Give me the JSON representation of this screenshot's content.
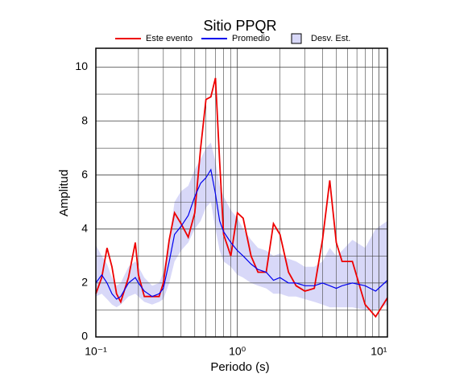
{
  "chart_data": {
    "type": "line",
    "title": "Sitio PPQR",
    "xlabel": "Periodo (s)",
    "ylabel": "Amplitud",
    "log_x": true,
    "grid": true,
    "legend": "top",
    "xlim": [
      0.1,
      11.5
    ],
    "ylim": [
      0,
      10.7
    ],
    "xticks": [
      {
        "value": 0.1,
        "label": "10⁻¹"
      },
      {
        "value": 1,
        "label": "10⁰"
      },
      {
        "value": 10,
        "label": "10¹"
      }
    ],
    "xminor": [
      0.2,
      0.3,
      0.4,
      0.5,
      0.6,
      0.7,
      0.8,
      0.9,
      2,
      3,
      4,
      5,
      6,
      7,
      8,
      9
    ],
    "yticks": [
      0,
      2,
      4,
      6,
      8,
      10
    ],
    "yminor": [
      1,
      3,
      5,
      7,
      9
    ],
    "x": [
      0.1,
      0.11,
      0.12,
      0.13,
      0.14,
      0.15,
      0.17,
      0.19,
      0.2,
      0.22,
      0.25,
      0.28,
      0.3,
      0.33,
      0.36,
      0.4,
      0.45,
      0.5,
      0.55,
      0.6,
      0.65,
      0.7,
      0.75,
      0.8,
      0.9,
      1.0,
      1.1,
      1.25,
      1.4,
      1.6,
      1.8,
      2.0,
      2.3,
      2.6,
      3.0,
      3.5,
      4.0,
      4.5,
      5.0,
      5.5,
      6.5,
      8,
      9.5,
      11.5
    ],
    "band": {
      "name": "Desv. Est.",
      "color": "#d8d8f8",
      "lower": [
        1.5,
        1.6,
        1.4,
        1.2,
        1.1,
        1.2,
        1.5,
        1.6,
        1.5,
        1.3,
        1.2,
        1.3,
        1.4,
        2.0,
        2.8,
        3.2,
        3.5,
        4.0,
        4.3,
        4.8,
        5.0,
        4.0,
        3.2,
        2.8,
        2.6,
        2.3,
        2.2,
        2.0,
        1.9,
        1.8,
        1.6,
        1.6,
        1.5,
        1.5,
        1.4,
        1.3,
        1.2,
        1.1,
        1.1,
        1.1,
        1.1,
        1.0,
        1.0,
        1.2
      ],
      "upper": [
        3.4,
        3.0,
        2.7,
        2.2,
        1.9,
        2.0,
        2.6,
        2.8,
        2.6,
        2.2,
        1.9,
        2.0,
        2.4,
        3.6,
        5.0,
        5.4,
        5.6,
        6.2,
        6.6,
        7.0,
        7.2,
        6.5,
        5.6,
        5.2,
        4.7,
        4.4,
        4.0,
        3.6,
        3.3,
        3.2,
        3.0,
        3.1,
        2.9,
        2.8,
        2.6,
        2.6,
        2.8,
        3.3,
        3.0,
        3.2,
        3.6,
        3.3,
        4.0,
        4.3
      ]
    },
    "series": [
      {
        "name": "Este evento",
        "color": "#ee0000",
        "values": [
          1.6,
          2.2,
          3.3,
          2.6,
          1.6,
          1.3,
          2.2,
          3.5,
          2.3,
          1.5,
          1.5,
          1.5,
          2.0,
          3.6,
          4.6,
          4.2,
          3.7,
          4.6,
          7.0,
          8.8,
          8.9,
          9.6,
          6.5,
          3.8,
          3.0,
          4.6,
          4.4,
          3.0,
          2.4,
          2.4,
          4.2,
          3.8,
          2.4,
          1.9,
          1.7,
          1.8,
          3.6,
          5.8,
          3.5,
          2.8,
          2.8,
          1.2,
          0.75,
          1.45
        ]
      },
      {
        "name": "Promedio",
        "color": "#0000ee",
        "values": [
          2.0,
          2.3,
          2.0,
          1.6,
          1.4,
          1.5,
          2.0,
          2.2,
          2.0,
          1.7,
          1.5,
          1.6,
          1.8,
          2.8,
          3.8,
          4.1,
          4.5,
          5.2,
          5.7,
          5.9,
          6.2,
          5.3,
          4.3,
          3.9,
          3.5,
          3.2,
          3.0,
          2.7,
          2.5,
          2.4,
          2.1,
          2.2,
          2.0,
          2.0,
          1.9,
          1.9,
          2.0,
          1.9,
          1.8,
          1.9,
          2.0,
          1.9,
          1.7,
          2.1
        ]
      }
    ]
  }
}
